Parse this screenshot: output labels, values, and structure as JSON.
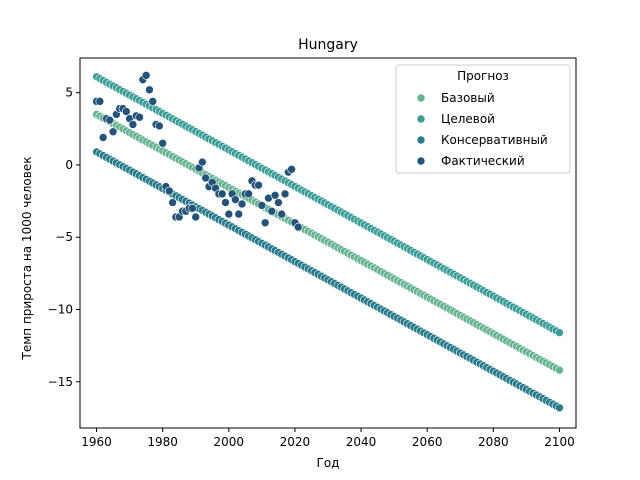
{
  "chart_data": {
    "type": "scatter",
    "title": "Hungary",
    "xlabel": "Год",
    "ylabel": "Темп прироста на 1000 человек",
    "xlim": [
      1955,
      2105
    ],
    "ylim": [
      -18.2,
      7.4
    ],
    "xticks": [
      1960,
      1980,
      2000,
      2020,
      2040,
      2060,
      2080,
      2100
    ],
    "yticks": [
      5,
      0,
      -5,
      -10,
      -15
    ],
    "grid": false,
    "legend": {
      "title": "Прогноз",
      "placement": "top-right",
      "entries": [
        "Базовый",
        "Целевой",
        "Консервативный",
        "Фактический"
      ]
    },
    "series": [
      {
        "name": "Базовый",
        "color": "#66b391",
        "line": {
          "x_start": 1960,
          "x_end": 2100,
          "y_start": 3.5,
          "y_end": -14.2,
          "step": 1
        }
      },
      {
        "name": "Целевой",
        "color": "#3a9c96",
        "line": {
          "x_start": 1960,
          "x_end": 2100,
          "y_start": 6.1,
          "y_end": -11.6,
          "step": 1
        }
      },
      {
        "name": "Консервативный",
        "color": "#277a8c",
        "line": {
          "x_start": 1960,
          "x_end": 2100,
          "y_start": 0.9,
          "y_end": -16.8,
          "step": 1
        }
      },
      {
        "name": "Фактический",
        "color": "#23527a",
        "x": [
          1960,
          1961,
          1962,
          1963,
          1964,
          1965,
          1966,
          1967,
          1968,
          1969,
          1970,
          1971,
          1972,
          1973,
          1974,
          1975,
          1976,
          1977,
          1978,
          1979,
          1980,
          1981,
          1982,
          1983,
          1984,
          1985,
          1986,
          1987,
          1988,
          1989,
          1990,
          1991,
          1992,
          1993,
          1994,
          1995,
          1996,
          1997,
          1998,
          1999,
          2000,
          2001,
          2002,
          2003,
          2004,
          2005,
          2006,
          2007,
          2008,
          2009,
          2010,
          2011,
          2012,
          2013,
          2014,
          2015,
          2016,
          2017,
          2018,
          2019,
          2020,
          2021
        ],
        "y": [
          4.4,
          4.4,
          1.9,
          3.2,
          3.1,
          2.3,
          3.5,
          3.9,
          3.9,
          3.7,
          3.2,
          2.8,
          3.4,
          3.3,
          5.9,
          6.2,
          5.2,
          4.4,
          2.8,
          2.7,
          1.5,
          -1.5,
          -1.8,
          -2.6,
          -3.6,
          -3.6,
          -3.2,
          -3.2,
          -3.0,
          -3.0,
          -3.6,
          -0.2,
          0.2,
          -0.9,
          -1.5,
          -1.2,
          -1.6,
          -2.0,
          -2.0,
          -2.6,
          -3.4,
          -2.0,
          -2.4,
          -3.4,
          -2.7,
          -2.0,
          -2.0,
          -1.1,
          -1.4,
          -1.4,
          -2.8,
          -4.0,
          -2.3,
          -3.2,
          -2.1,
          -2.6,
          -3.4,
          -2.0,
          -0.5,
          -0.3,
          -4.0,
          -4.3
        ]
      }
    ]
  }
}
